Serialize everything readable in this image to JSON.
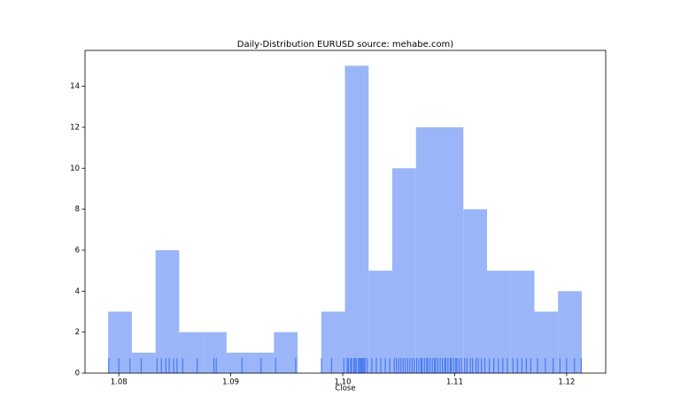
{
  "chart_data": {
    "type": "histogram",
    "title": "Daily-Distribution EURUSD source: mehabe.com)",
    "x_label": "Close",
    "bins": [
      1.07905,
      1.081165,
      1.08328,
      1.085395,
      1.08751,
      1.089625,
      1.09174,
      1.093855,
      1.09597,
      1.098085,
      1.1002,
      1.102315,
      1.10443,
      1.106545,
      1.10866,
      1.110775,
      1.11289,
      1.115005,
      1.11712,
      1.119235,
      1.12135
    ],
    "values": [
      3,
      1,
      6,
      2,
      2,
      1,
      1,
      2,
      0,
      3,
      15,
      5,
      10,
      12,
      12,
      8,
      5,
      5,
      3,
      4
    ],
    "color": "#9ab5f8",
    "rug": [
      1.0791,
      1.08,
      1.081,
      1.082,
      1.0834,
      1.0838,
      1.0842,
      1.0845,
      1.0849,
      1.0852,
      1.0857,
      1.087,
      1.0885,
      1.0887,
      1.091,
      1.0927,
      1.094,
      1.0958,
      1.0981,
      1.099,
      1.1001,
      1.1004,
      1.1005,
      1.1007,
      1.1008,
      1.101,
      1.1011,
      1.1012,
      1.1014,
      1.1015,
      1.1016,
      1.1017,
      1.1018,
      1.1019,
      1.102,
      1.1022,
      1.1026,
      1.103,
      1.1034,
      1.1038,
      1.1042,
      1.1046,
      1.1048,
      1.105,
      1.1052,
      1.1054,
      1.1056,
      1.1058,
      1.106,
      1.1062,
      1.1064,
      1.1066,
      1.1068,
      1.107,
      1.1071,
      1.1073,
      1.1075,
      1.1076,
      1.1078,
      1.108,
      1.1082,
      1.1083,
      1.1085,
      1.1087,
      1.1089,
      1.1091,
      1.1092,
      1.1094,
      1.1096,
      1.1097,
      1.1099,
      1.1101,
      1.1102,
      1.1104,
      1.1106,
      1.1109,
      1.1111,
      1.1114,
      1.1116,
      1.1119,
      1.1121,
      1.1124,
      1.1127,
      1.1131,
      1.1135,
      1.1139,
      1.1143,
      1.1147,
      1.1152,
      1.1156,
      1.116,
      1.1164,
      1.1168,
      1.1174,
      1.1181,
      1.1188,
      1.1194,
      1.12,
      1.1207,
      1.1213
    ],
    "rug_color": "#3b6fef",
    "xlim": [
      1.07698,
      1.12349
    ],
    "ylim": [
      0,
      15.75
    ],
    "xticks": [
      1.08,
      1.09,
      {
        "value": 1.1,
        "label": "1.10"
      },
      1.11,
      1.12
    ],
    "yticks": [
      0,
      2,
      4,
      6,
      8,
      10,
      12,
      14
    ]
  }
}
